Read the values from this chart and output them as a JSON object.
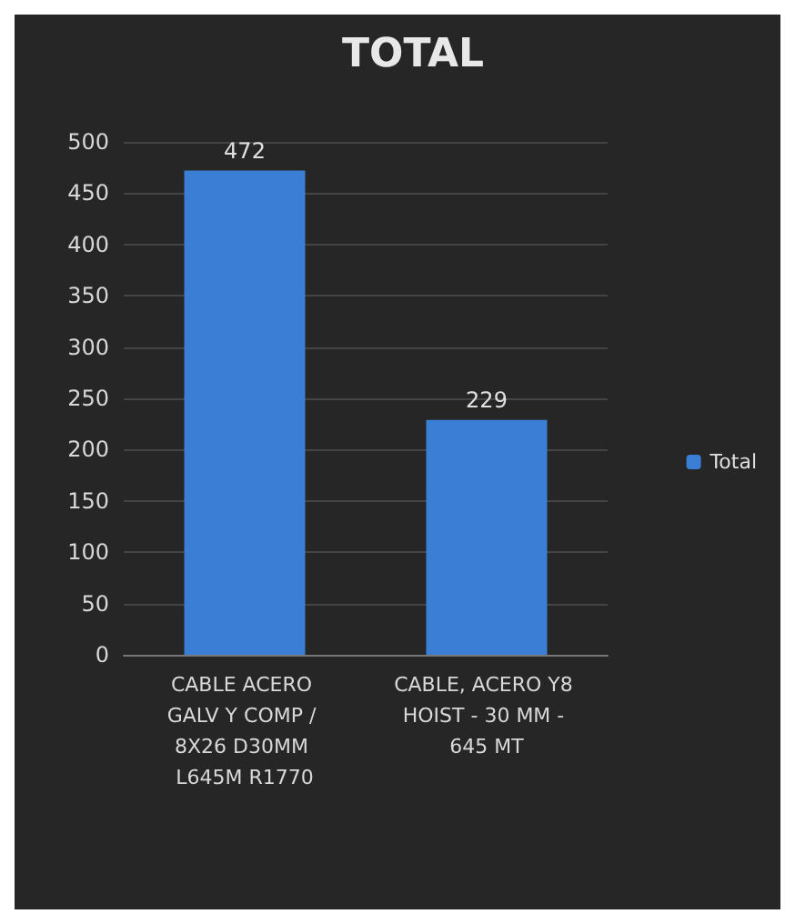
{
  "chart_data": {
    "type": "bar",
    "title": "TOTAL",
    "categories": [
      "CABLE ACERO GALV Y COMP / 8X26 D30MM L645M R1770",
      "CABLE, ACERO Y8 HOIST - 30 MM - 645 MT"
    ],
    "series": [
      {
        "name": "Total",
        "color": "#3a7fd5",
        "values": [
          472,
          229
        ]
      }
    ],
    "ylim": [
      0,
      500
    ],
    "yticks": [
      0,
      50,
      100,
      150,
      200,
      250,
      300,
      350,
      400,
      450,
      500
    ],
    "grid": "y",
    "legend": "right",
    "data_labels": true
  }
}
